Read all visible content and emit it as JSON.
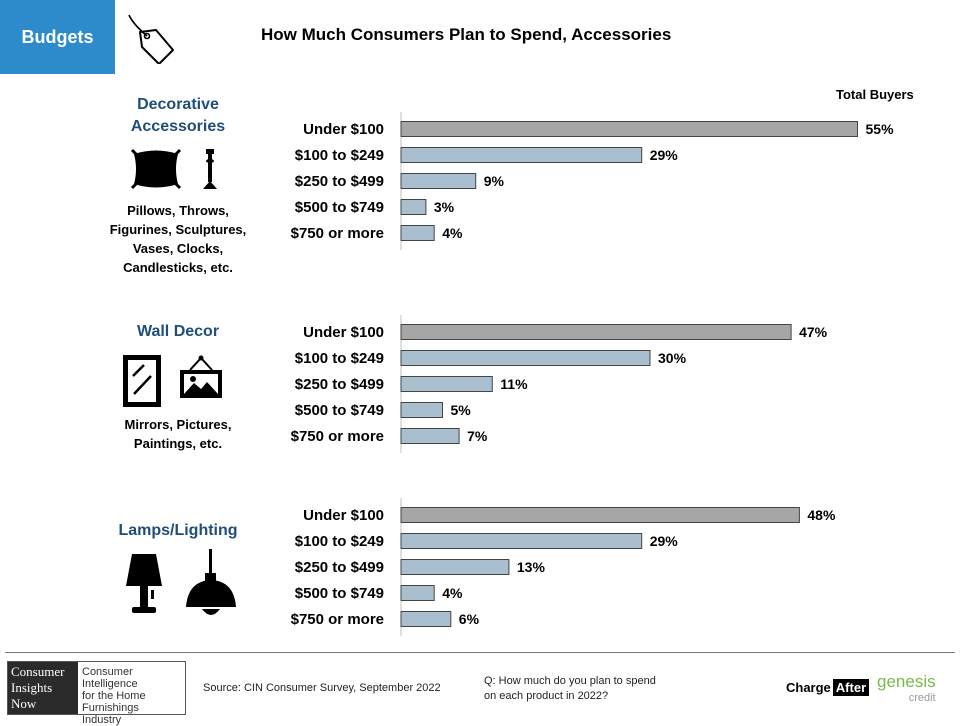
{
  "header": {
    "tab_label": "Budgets",
    "title": "How Much Consumers Plan to Spend, Accessories",
    "total_buyers": "Total Buyers"
  },
  "categories": [
    {
      "title_line1": "Decorative",
      "title_line2": "Accessories",
      "desc": [
        "Pillows, Throws,",
        "Figurines, Sculptures,",
        "Vases, Clocks,",
        "Candlesticks, etc."
      ],
      "icons": [
        "pillow-icon",
        "candlestick-icon"
      ]
    },
    {
      "title_line1": "Wall Decor",
      "title_line2": "",
      "desc": [
        "Mirrors, Pictures,",
        "Paintings, etc."
      ],
      "icons": [
        "mirror-icon",
        "picture-frame-icon"
      ]
    },
    {
      "title_line1": "Lamps/Lighting",
      "title_line2": "",
      "desc": [],
      "icons": [
        "table-lamp-icon",
        "pendant-lamp-icon"
      ]
    }
  ],
  "chart_data": [
    {
      "type": "bar",
      "orientation": "horizontal",
      "title": "Decorative Accessories",
      "categories": [
        "Under $100",
        "$100 to $249",
        "$250 to $499",
        "$500 to $749",
        "$750 or more"
      ],
      "values": [
        55,
        29,
        9,
        3,
        4
      ],
      "labels": [
        "55%",
        "29%",
        "9%",
        "3%",
        "4%"
      ],
      "unit": "%"
    },
    {
      "type": "bar",
      "orientation": "horizontal",
      "title": "Wall Decor",
      "categories": [
        "Under $100",
        "$100 to $249",
        "$250 to $499",
        "$500 to $749",
        "$750 or more"
      ],
      "values": [
        47,
        30,
        11,
        5,
        7
      ],
      "labels": [
        "47%",
        "30%",
        "11%",
        "5%",
        "7%"
      ],
      "unit": "%"
    },
    {
      "type": "bar",
      "orientation": "horizontal",
      "title": "Lamps/Lighting",
      "categories": [
        "Under $100",
        "$100 to $249",
        "$250 to $499",
        "$500 to $749",
        "$750 or more"
      ],
      "values": [
        48,
        29,
        13,
        4,
        6
      ],
      "labels": [
        "48%",
        "29%",
        "13%",
        "4%",
        "6%"
      ],
      "unit": "%"
    }
  ],
  "colors": {
    "highlight_bar": "#a6a6a6",
    "bar": "#a9bfd0",
    "bar_stroke": "#444444",
    "tab": "#2e8bcb",
    "category_title": "#1f4e79"
  },
  "footer": {
    "logo_left": [
      "Consumer",
      "Insights",
      "Now"
    ],
    "logo_right": [
      "Consumer Intelligence",
      "for the Home",
      "Furnishings Industry"
    ],
    "source": "Source: CIN Consumer Survey, September  2022",
    "question_line1": "Q: How much do you plan to spend",
    "question_line2": "on each product in 2022?",
    "chargeafter_a": "Charge",
    "chargeafter_b": "After",
    "genesis": "genesis",
    "genesis_credit": "credit"
  }
}
